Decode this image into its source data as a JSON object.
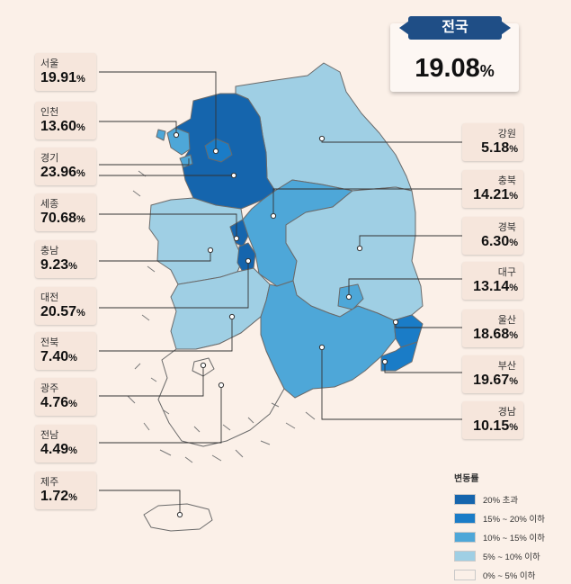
{
  "national": {
    "label": "전국",
    "value": "19.08",
    "unit": "%"
  },
  "regions": [
    {
      "id": "seoul",
      "name": "서울",
      "value": "19.91",
      "unit": "%",
      "color": "#1a7cc7"
    },
    {
      "id": "incheon",
      "name": "인천",
      "value": "13.60",
      "unit": "%",
      "color": "#4ea7d8"
    },
    {
      "id": "gyeonggi",
      "name": "경기",
      "value": "23.96",
      "unit": "%",
      "color": "#1565ad"
    },
    {
      "id": "sejong",
      "name": "세종",
      "value": "70.68",
      "unit": "%",
      "color": "#1565ad"
    },
    {
      "id": "chungnam",
      "name": "충남",
      "value": "9.23",
      "unit": "%",
      "color": "#9fcfe4"
    },
    {
      "id": "daejeon",
      "name": "대전",
      "value": "20.57",
      "unit": "%",
      "color": "#1565ad"
    },
    {
      "id": "jeonbuk",
      "name": "전북",
      "value": "7.40",
      "unit": "%",
      "color": "#9fcfe4"
    },
    {
      "id": "gwangju",
      "name": "광주",
      "value": "4.76",
      "unit": "%",
      "color": "#fbf0e8"
    },
    {
      "id": "jeonnam",
      "name": "전남",
      "value": "4.49",
      "unit": "%",
      "color": "#fbf0e8"
    },
    {
      "id": "jeju",
      "name": "제주",
      "value": "1.72",
      "unit": "%",
      "color": "#fbf0e8"
    },
    {
      "id": "gangwon",
      "name": "강원",
      "value": "5.18",
      "unit": "%",
      "color": "#9fcfe4"
    },
    {
      "id": "chungbuk",
      "name": "충북",
      "value": "14.21",
      "unit": "%",
      "color": "#4ea7d8"
    },
    {
      "id": "gyeongbuk",
      "name": "경북",
      "value": "6.30",
      "unit": "%",
      "color": "#9fcfe4"
    },
    {
      "id": "daegu",
      "name": "대구",
      "value": "13.14",
      "unit": "%",
      "color": "#4ea7d8"
    },
    {
      "id": "ulsan",
      "name": "울산",
      "value": "18.68",
      "unit": "%",
      "color": "#1a7cc7"
    },
    {
      "id": "busan",
      "name": "부산",
      "value": "19.67",
      "unit": "%",
      "color": "#1a7cc7"
    },
    {
      "id": "gyeongnam",
      "name": "경남",
      "value": "10.15",
      "unit": "%",
      "color": "#4ea7d8"
    }
  ],
  "legend": {
    "title": "변동률",
    "items": [
      {
        "label": "20% 초과",
        "color": "#1565ad"
      },
      {
        "label": "15% ~ 20% 이하",
        "color": "#1a7cc7"
      },
      {
        "label": "10% ~ 15% 이하",
        "color": "#4ea7d8"
      },
      {
        "label": "5% ~ 10% 이하",
        "color": "#9fcfe4"
      },
      {
        "label": "0% ~ 5% 이하",
        "color": "#fbf0e8"
      }
    ]
  }
}
